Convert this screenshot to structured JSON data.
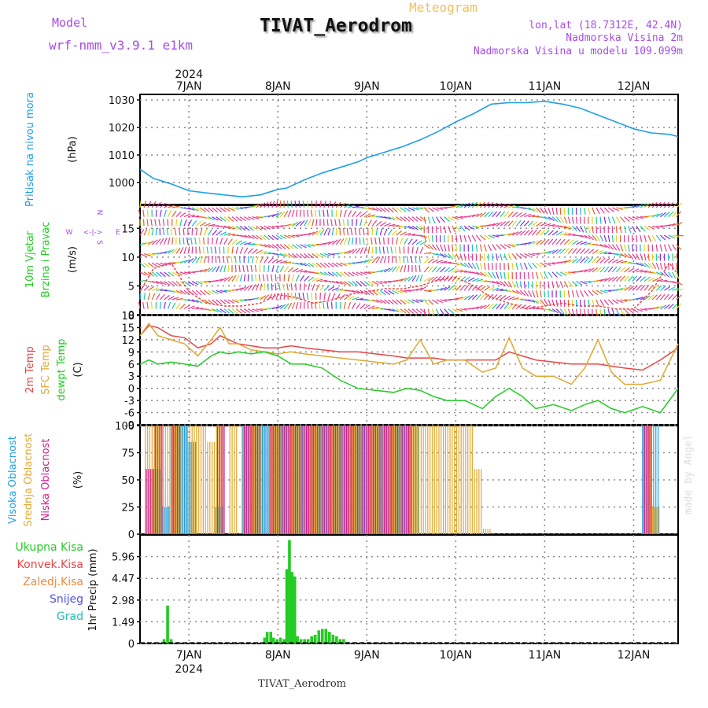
{
  "header": {
    "model_label": "Model",
    "model_name": "wrf-nmm_v3.9.1 e1km",
    "product": "Meteogram",
    "title": "TIVAT_Aerodrom",
    "lonlat": "lon,lat (18.7312E, 42.4N)",
    "elevation": "Nadmorska Visina 2m",
    "model_elevation": "Nadmorska Visina u modelu 109.099m"
  },
  "footer": {
    "station": "TIVAT_Aerodrom",
    "credit": "made by Angel"
  },
  "colors": {
    "pressure": "#1ea0e6",
    "t2m": "#e84646",
    "sfc": "#e0a832",
    "dewpt": "#22cc22",
    "high_cloud": "#1ea0e6",
    "mid_cloud": "#e0a832",
    "low_cloud": "#d01e8c",
    "precip": "#22cc22",
    "grid": "#888888"
  },
  "chart_data": [
    {
      "type": "line",
      "ylabel_left": "Pritisak na nivou mora",
      "ylabel_unit": "(hPa)",
      "year_top": "2024",
      "x_day_labels": [
        "7JAN",
        "8JAN",
        "9JAN",
        "10JAN",
        "11JAN",
        "12JAN"
      ],
      "x_range_days": [
        6.45,
        12.5
      ],
      "ylim": [
        992,
        1032
      ],
      "yticks": [
        1000,
        1010,
        1020,
        1030
      ],
      "series": [
        {
          "x": [
            6.45,
            6.6,
            6.8,
            7.0,
            7.2,
            7.4,
            7.6,
            7.8,
            8.0,
            8.1,
            8.3,
            8.5,
            8.7,
            8.9,
            9.0,
            9.2,
            9.4,
            9.6,
            9.8,
            10.0,
            10.2,
            10.4,
            10.6,
            10.8,
            11.0,
            11.2,
            11.4,
            11.6,
            11.8,
            12.0,
            12.2,
            12.4,
            12.5
          ],
          "values": [
            1004.8,
            1001.5,
            999.5,
            997,
            996.2,
            995.5,
            994.8,
            995.5,
            997.5,
            998,
            1001,
            1003.5,
            1005.5,
            1007.5,
            1009,
            1011,
            1013,
            1015.5,
            1018.5,
            1022,
            1025,
            1028.5,
            1029,
            1029,
            1029.5,
            1028.5,
            1027,
            1024.5,
            1022,
            1019.5,
            1018,
            1017.5,
            1016.7
          ]
        }
      ]
    },
    {
      "type": "scatter",
      "ylabel_left": "10m Vjetar",
      "ylabel_left2": "Brzina i Pravac",
      "ylabel_unit": "(m/s)",
      "compass": [
        "W",
        "<-|->",
        "E",
        "N",
        "|",
        "S"
      ],
      "ylim": [
        0,
        19
      ],
      "yticks": [
        0,
        5,
        10,
        15
      ],
      "series": [
        {
          "name": "wind speed",
          "x": [
            6.45,
            6.6,
            6.8,
            7.0,
            7.2,
            7.4,
            7.6,
            7.8,
            8.0,
            8.2,
            8.4,
            8.6,
            8.8,
            9.0,
            9.2,
            9.4,
            9.6,
            9.8,
            10.0,
            10.2,
            10.4,
            10.6,
            10.8,
            11.0,
            11.2,
            11.4,
            11.6,
            11.8,
            12.0,
            12.2,
            12.4,
            12.5
          ],
          "values": [
            4,
            8,
            9,
            4,
            2,
            1.5,
            1.5,
            2,
            3.5,
            3,
            2,
            2.5,
            3.5,
            4,
            4.5,
            4.5,
            5,
            6,
            6.5,
            5,
            3,
            2,
            1,
            1.5,
            2,
            1.5,
            1.5,
            1,
            1,
            4,
            9,
            7
          ]
        }
      ]
    },
    {
      "type": "line",
      "ylabel_left": "2m Temp",
      "ylabel_left2": "SFC Temp",
      "ylabel_left3": "dewpt Temp",
      "ylabel_unit": "(C)",
      "ylim": [
        -9,
        18
      ],
      "yticks": [
        -9,
        -6,
        -3,
        0,
        3,
        6,
        9,
        12,
        15,
        18
      ],
      "x": [
        6.45,
        6.55,
        6.65,
        6.8,
        6.95,
        7.1,
        7.25,
        7.35,
        7.45,
        7.55,
        7.7,
        7.85,
        8.0,
        8.15,
        8.3,
        8.5,
        8.7,
        8.9,
        9.1,
        9.3,
        9.45,
        9.6,
        9.75,
        9.9,
        10.1,
        10.3,
        10.45,
        10.6,
        10.75,
        10.9,
        11.1,
        11.3,
        11.45,
        11.6,
        11.75,
        11.9,
        12.1,
        12.3,
        12.5
      ],
      "series": [
        {
          "name": "2m Temp",
          "values": [
            13,
            15.5,
            15,
            13,
            12.5,
            10,
            11,
            13,
            12,
            11,
            10.5,
            10,
            10,
            10.5,
            10,
            9.5,
            9,
            9,
            8.5,
            8,
            7.5,
            7.5,
            7.5,
            7,
            7,
            7,
            7,
            9,
            8,
            7,
            6.5,
            6,
            6,
            6,
            5.5,
            5,
            4.5,
            7,
            10
          ]
        },
        {
          "name": "SFC Temp",
          "values": [
            13,
            16,
            13,
            12,
            11,
            8,
            12,
            15,
            11,
            11,
            9.5,
            9,
            8.5,
            9,
            8.5,
            8,
            7.5,
            7,
            6.5,
            6,
            7,
            12,
            6,
            7,
            7,
            4,
            5,
            12.5,
            5,
            3,
            3,
            1,
            5,
            12,
            4,
            1,
            1,
            2,
            11
          ]
        },
        {
          "name": "dewpt Temp",
          "values": [
            6,
            7,
            6,
            6.5,
            6,
            5.5,
            8,
            9,
            8.5,
            9,
            8.5,
            9,
            8,
            6,
            6,
            5,
            2,
            0,
            -0.5,
            -1,
            0,
            -0.5,
            -2,
            -3,
            -3,
            -5,
            -2,
            0,
            -2,
            -5,
            -4,
            -5.5,
            -4,
            -3,
            -5,
            -6,
            -4.5,
            -6,
            0
          ]
        }
      ]
    },
    {
      "type": "bar",
      "ylabel_left": "Visoka Oblacnost",
      "ylabel_left2": "Srednja Oblacnost",
      "ylabel_left3": "Niska Oblacnost",
      "ylabel_unit": "(%)",
      "ylim": [
        0,
        100
      ],
      "yticks": [
        0,
        25,
        50,
        75,
        100
      ],
      "x": [
        6.5,
        6.6,
        6.7,
        6.8,
        6.9,
        7.0,
        7.1,
        7.2,
        7.3,
        7.45,
        7.6,
        7.7,
        7.8,
        7.9,
        8.0,
        8.1,
        8.2,
        8.3,
        8.4,
        8.5,
        8.6,
        8.7,
        8.8,
        8.9,
        9.0,
        9.1,
        9.2,
        9.3,
        9.4,
        9.5,
        9.6,
        9.7,
        9.8,
        9.9,
        10.0,
        10.1,
        10.2,
        10.3,
        12.1,
        12.2
      ],
      "series": [
        {
          "name": "Visoka Oblacnost",
          "values": [
            0,
            60,
            25,
            100,
            100,
            85,
            0,
            0,
            25,
            0,
            100,
            100,
            100,
            100,
            100,
            100,
            100,
            100,
            100,
            100,
            100,
            100,
            100,
            100,
            100,
            100,
            100,
            100,
            100,
            100,
            0,
            0,
            0,
            0,
            0,
            0,
            0,
            0,
            100,
            100
          ]
        },
        {
          "name": "Srednja Oblacnost",
          "values": [
            100,
            100,
            100,
            100,
            100,
            100,
            100,
            85,
            100,
            100,
            100,
            100,
            100,
            100,
            100,
            100,
            100,
            100,
            100,
            100,
            100,
            100,
            100,
            100,
            100,
            100,
            100,
            100,
            100,
            100,
            100,
            100,
            100,
            100,
            100,
            100,
            60,
            5,
            100,
            25
          ]
        },
        {
          "name": "Niska Oblacnost",
          "values": [
            60,
            100,
            0,
            100,
            0,
            0,
            0,
            0,
            100,
            0,
            100,
            100,
            0,
            100,
            100,
            100,
            100,
            100,
            100,
            100,
            100,
            100,
            100,
            100,
            100,
            100,
            100,
            100,
            100,
            0,
            0,
            0,
            0,
            0,
            0,
            0,
            0,
            0,
            100,
            0
          ]
        }
      ]
    },
    {
      "type": "bar",
      "legend": [
        "Ukupna Kisa",
        "Konvek.Kisa",
        "Zaledj.Kisa",
        "Snijeg",
        "Grad"
      ],
      "ylabel_unit": "1hr Precip (mm)",
      "ylim": [
        0,
        7.45
      ],
      "yticks": [
        0,
        1.49,
        2.98,
        4.47,
        5.96
      ],
      "ytick_labels": [
        "0",
        "1.49",
        "2.98",
        "4.47",
        "5.96"
      ],
      "year_bottom": "2024",
      "x": [
        6.72,
        6.76,
        6.8,
        7.85,
        7.88,
        7.92,
        7.95,
        7.99,
        8.03,
        8.07,
        8.1,
        8.13,
        8.16,
        8.19,
        8.22,
        8.26,
        8.3,
        8.34,
        8.38,
        8.42,
        8.46,
        8.5,
        8.54,
        8.58,
        8.62,
        8.66,
        8.7,
        8.74
      ],
      "values": [
        0.3,
        2.6,
        0.3,
        0.4,
        0.8,
        0.8,
        0.4,
        0.3,
        0.4,
        0.3,
        5.1,
        7.1,
        4.9,
        4.6,
        0.5,
        0.3,
        0.3,
        0.3,
        0.5,
        0.6,
        0.9,
        1.0,
        1.0,
        0.8,
        0.6,
        0.5,
        0.3,
        0.3
      ]
    }
  ]
}
